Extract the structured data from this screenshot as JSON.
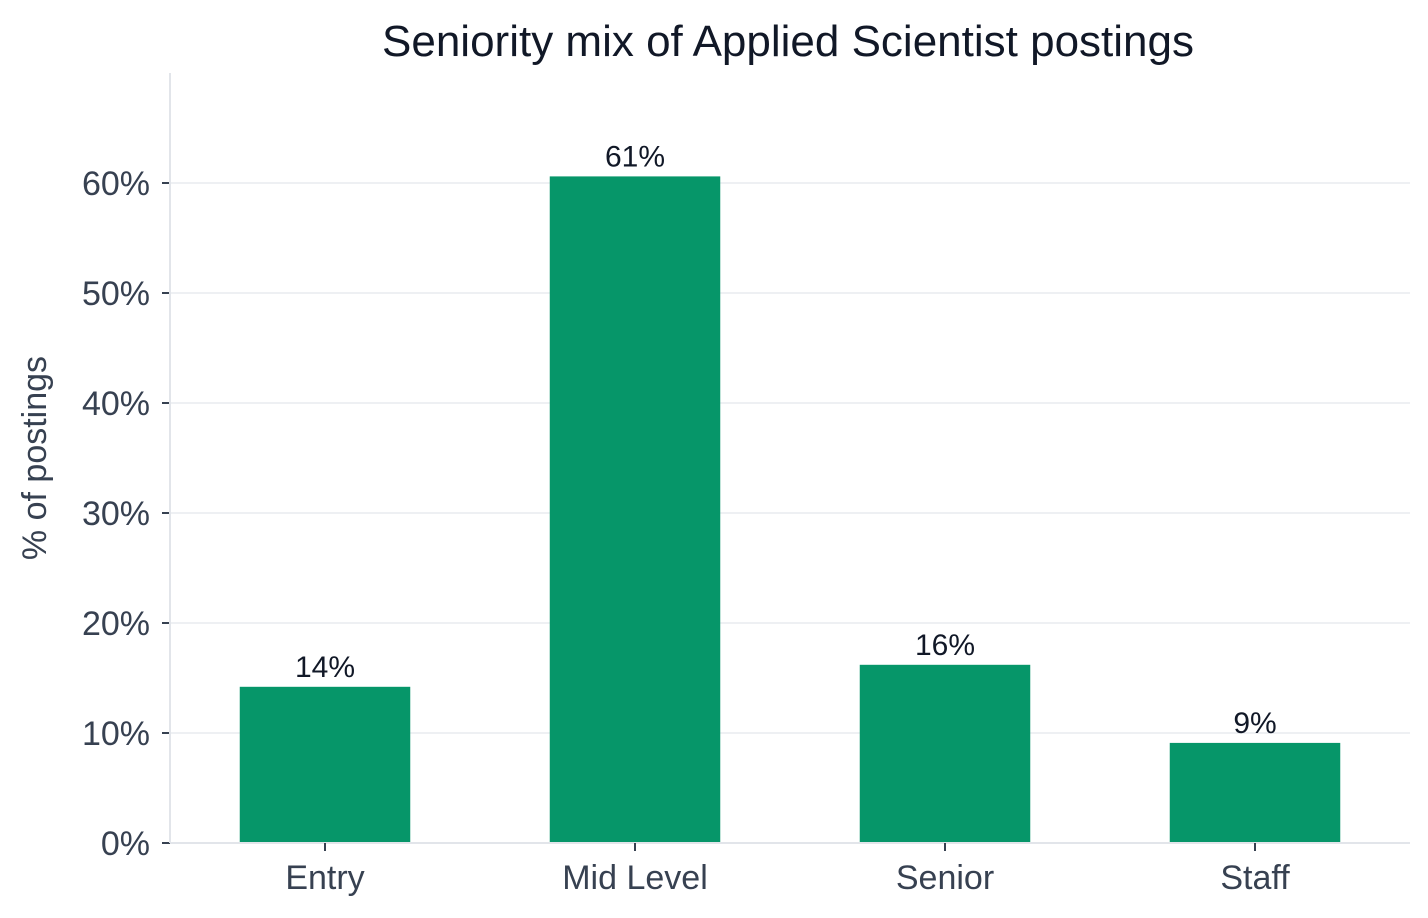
{
  "chart_data": {
    "type": "bar",
    "title": "Seniority mix of Applied Scientist postings",
    "xlabel": "",
    "ylabel": "% of postings",
    "categories": [
      "Entry",
      "Mid Level",
      "Senior",
      "Staff"
    ],
    "values": [
      14.2,
      60.6,
      16.2,
      9.1
    ],
    "data_labels": [
      "14%",
      "61%",
      "16%",
      "9%"
    ],
    "yticks": [
      0,
      10,
      20,
      30,
      40,
      50,
      60
    ],
    "ytick_labels": [
      "0%",
      "10%",
      "20%",
      "30%",
      "40%",
      "50%",
      "60%"
    ],
    "ylim": [
      0,
      70
    ],
    "grid": "horizontal",
    "legend": "none",
    "colors": {
      "bar": "#069669",
      "grid": "#eef0f3",
      "axis": "#e2e5ea",
      "title": "#111827",
      "tick_text": "#374151"
    }
  }
}
